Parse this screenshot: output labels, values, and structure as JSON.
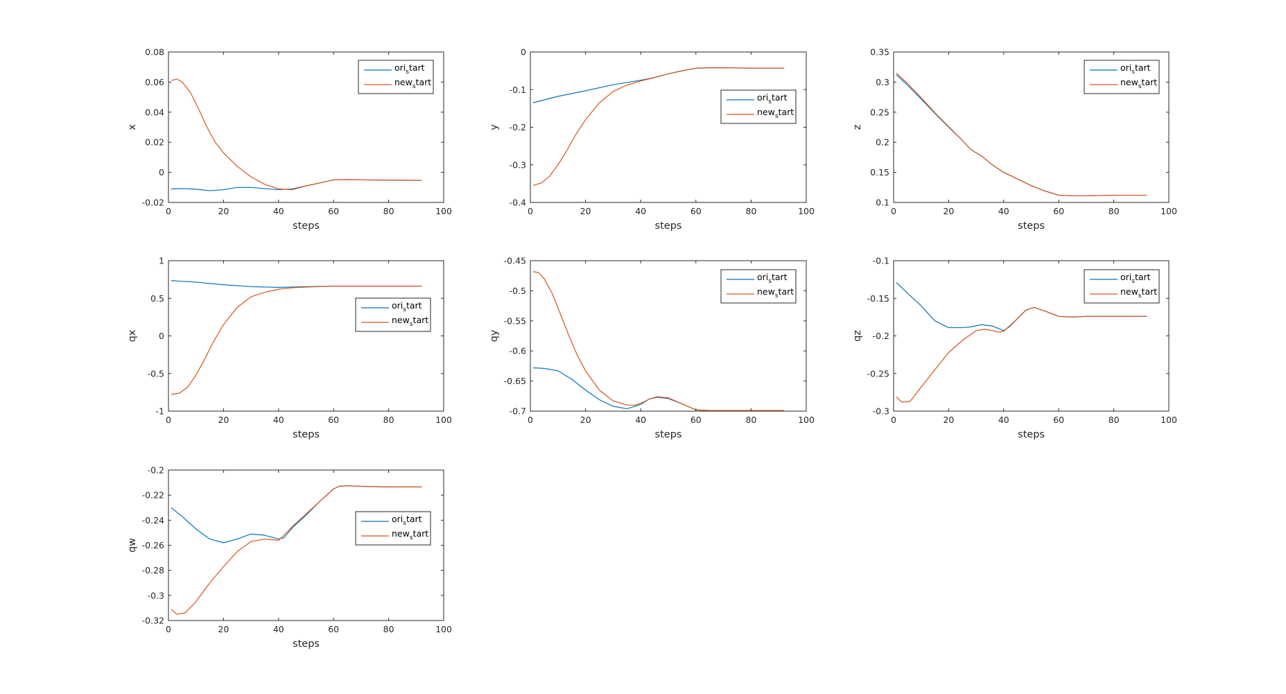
{
  "figure": {
    "background": "#ffffff"
  },
  "series_styles": {
    "ori_start": "#0072BD",
    "new_start": "#D95319"
  },
  "chart_data": [
    {
      "type": "line",
      "title": "",
      "xlabel": "steps",
      "ylabel": "x",
      "xlim": [
        0,
        100
      ],
      "ylim": [
        -0.02,
        0.08
      ],
      "xticks": [
        0,
        20,
        40,
        60,
        80,
        100
      ],
      "yticks": [
        -0.02,
        0,
        0.02,
        0.04,
        0.06,
        0.08
      ],
      "ytick_labels": [
        "-0.02",
        "0",
        "0.02",
        "0.04",
        "0.06",
        "0.08"
      ],
      "legend": "top-right",
      "grid": false,
      "series": [
        {
          "name": "ori_start",
          "color": "#0072BD",
          "x": [
            1,
            5,
            10,
            15,
            20,
            25,
            30,
            35,
            40,
            45,
            50,
            55,
            60,
            65,
            70,
            80,
            92
          ],
          "y": [
            -0.011,
            -0.0108,
            -0.0112,
            -0.0122,
            -0.0115,
            -0.01,
            -0.01,
            -0.0108,
            -0.0115,
            -0.011,
            -0.009,
            -0.007,
            -0.005,
            -0.0048,
            -0.005,
            -0.0052,
            -0.0053
          ]
        },
        {
          "name": "new_start",
          "color": "#D95319",
          "x": [
            1,
            3,
            5,
            8,
            11,
            14,
            17,
            20,
            25,
            30,
            35,
            40,
            45,
            50,
            55,
            60,
            65,
            70,
            80,
            92
          ],
          "y": [
            0.061,
            0.062,
            0.06,
            0.053,
            0.042,
            0.03,
            0.02,
            0.013,
            0.004,
            -0.003,
            -0.008,
            -0.011,
            -0.0115,
            -0.009,
            -0.007,
            -0.005,
            -0.0048,
            -0.005,
            -0.0052,
            -0.0053
          ]
        }
      ]
    },
    {
      "type": "line",
      "title": "",
      "xlabel": "steps",
      "ylabel": "y",
      "xlim": [
        0,
        100
      ],
      "ylim": [
        -0.4,
        0
      ],
      "xticks": [
        0,
        20,
        40,
        60,
        80,
        100
      ],
      "yticks": [
        -0.4,
        -0.3,
        -0.2,
        -0.1,
        0
      ],
      "ytick_labels": [
        "-0.4",
        "-0.3",
        "-0.2",
        "-0.1",
        "0"
      ],
      "legend": "top-right",
      "grid": false,
      "series": [
        {
          "name": "ori_start",
          "color": "#0072BD",
          "x": [
            1,
            10,
            20,
            30,
            40,
            45,
            50,
            55,
            60,
            65,
            70,
            80,
            92
          ],
          "y": [
            -0.135,
            -0.118,
            -0.103,
            -0.087,
            -0.075,
            -0.068,
            -0.058,
            -0.05,
            -0.043,
            -0.042,
            -0.042,
            -0.043,
            -0.043
          ]
        },
        {
          "name": "new_start",
          "color": "#D95319",
          "x": [
            1,
            4,
            7,
            10,
            13,
            16,
            20,
            25,
            30,
            35,
            40,
            45,
            50,
            55,
            60,
            65,
            70,
            80,
            92
          ],
          "y": [
            -0.355,
            -0.348,
            -0.33,
            -0.3,
            -0.265,
            -0.225,
            -0.18,
            -0.135,
            -0.105,
            -0.088,
            -0.077,
            -0.068,
            -0.058,
            -0.05,
            -0.043,
            -0.042,
            -0.042,
            -0.043,
            -0.043
          ]
        }
      ]
    },
    {
      "type": "line",
      "title": "",
      "xlabel": "steps",
      "ylabel": "z",
      "xlim": [
        0,
        100
      ],
      "ylim": [
        0.1,
        0.35
      ],
      "xticks": [
        0,
        20,
        40,
        60,
        80,
        100
      ],
      "yticks": [
        0.1,
        0.15,
        0.2,
        0.25,
        0.3,
        0.35
      ],
      "ytick_labels": [
        "0.1",
        "0.15",
        "0.2",
        "0.25",
        "0.3",
        "0.35"
      ],
      "legend": "top-right",
      "grid": false,
      "series": [
        {
          "name": "ori_start",
          "color": "#0072BD",
          "x": [
            1,
            5,
            10,
            15,
            20,
            25,
            28,
            32,
            36,
            40,
            45,
            50,
            55,
            60,
            65,
            70,
            80,
            92
          ],
          "y": [
            0.312,
            0.295,
            0.272,
            0.248,
            0.225,
            0.203,
            0.188,
            0.177,
            0.162,
            0.15,
            0.139,
            0.128,
            0.119,
            0.112,
            0.111,
            0.111,
            0.112,
            0.112
          ]
        },
        {
          "name": "new_start",
          "color": "#D95319",
          "x": [
            1,
            5,
            10,
            15,
            20,
            25,
            28,
            32,
            36,
            40,
            45,
            50,
            55,
            60,
            65,
            70,
            80,
            92
          ],
          "y": [
            0.315,
            0.298,
            0.274,
            0.249,
            0.226,
            0.203,
            0.188,
            0.177,
            0.162,
            0.15,
            0.139,
            0.128,
            0.119,
            0.112,
            0.111,
            0.111,
            0.112,
            0.112
          ]
        }
      ]
    },
    {
      "type": "line",
      "title": "",
      "xlabel": "steps",
      "ylabel": "qx",
      "xlim": [
        0,
        100
      ],
      "ylim": [
        -1,
        1
      ],
      "xticks": [
        0,
        20,
        40,
        60,
        80,
        100
      ],
      "yticks": [
        -1,
        -0.5,
        0,
        0.5,
        1
      ],
      "ytick_labels": [
        "-1",
        "-0.5",
        "0",
        "0.5",
        "1"
      ],
      "legend": "right",
      "grid": false,
      "series": [
        {
          "name": "ori_start",
          "color": "#0072BD",
          "x": [
            1,
            10,
            20,
            30,
            40,
            50,
            60,
            70,
            80,
            92
          ],
          "y": [
            0.735,
            0.715,
            0.68,
            0.655,
            0.645,
            0.655,
            0.66,
            0.66,
            0.66,
            0.66
          ]
        },
        {
          "name": "new_start",
          "color": "#D95319",
          "x": [
            1,
            4,
            7,
            10,
            13,
            16,
            20,
            25,
            30,
            35,
            40,
            45,
            50,
            55,
            60,
            70,
            80,
            92
          ],
          "y": [
            -0.78,
            -0.76,
            -0.68,
            -0.52,
            -0.32,
            -0.1,
            0.15,
            0.38,
            0.52,
            0.58,
            0.62,
            0.64,
            0.65,
            0.655,
            0.66,
            0.66,
            0.66,
            0.66
          ]
        }
      ]
    },
    {
      "type": "line",
      "title": "",
      "xlabel": "steps",
      "ylabel": "qy",
      "xlim": [
        0,
        100
      ],
      "ylim": [
        -0.7,
        -0.45
      ],
      "xticks": [
        0,
        20,
        40,
        60,
        80,
        100
      ],
      "yticks": [
        -0.7,
        -0.65,
        -0.6,
        -0.55,
        -0.5,
        -0.45
      ],
      "ytick_labels": [
        "-0.7",
        "-0.65",
        "-0.6",
        "-0.55",
        "-0.5",
        "-0.45"
      ],
      "legend": "top-right",
      "grid": false,
      "series": [
        {
          "name": "ori_start",
          "color": "#0072BD",
          "x": [
            1,
            5,
            10,
            15,
            20,
            25,
            30,
            35,
            40,
            43,
            46,
            50,
            55,
            60,
            65,
            70,
            80,
            92
          ],
          "y": [
            -0.628,
            -0.629,
            -0.633,
            -0.647,
            -0.665,
            -0.681,
            -0.692,
            -0.696,
            -0.689,
            -0.68,
            -0.677,
            -0.679,
            -0.688,
            -0.698,
            -0.699,
            -0.699,
            -0.699,
            -0.699
          ]
        },
        {
          "name": "new_start",
          "color": "#D95319",
          "x": [
            1,
            3,
            5,
            8,
            11,
            14,
            17,
            20,
            25,
            30,
            35,
            38,
            41,
            43,
            46,
            50,
            55,
            60,
            65,
            70,
            80,
            92
          ],
          "y": [
            -0.468,
            -0.47,
            -0.48,
            -0.505,
            -0.54,
            -0.575,
            -0.607,
            -0.633,
            -0.665,
            -0.683,
            -0.69,
            -0.69,
            -0.685,
            -0.68,
            -0.676,
            -0.678,
            -0.688,
            -0.698,
            -0.699,
            -0.699,
            -0.699,
            -0.699
          ]
        }
      ]
    },
    {
      "type": "line",
      "title": "",
      "xlabel": "steps",
      "ylabel": "qz",
      "xlim": [
        0,
        100
      ],
      "ylim": [
        -0.3,
        -0.1
      ],
      "xticks": [
        0,
        20,
        40,
        60,
        80,
        100
      ],
      "yticks": [
        -0.3,
        -0.25,
        -0.2,
        -0.15,
        -0.1
      ],
      "ytick_labels": [
        "-0.3",
        "-0.25",
        "-0.2",
        "-0.15",
        "-0.1"
      ],
      "legend": "top-right",
      "grid": false,
      "series": [
        {
          "name": "ori_start",
          "color": "#0072BD",
          "x": [
            1,
            5,
            10,
            15,
            20,
            25,
            28,
            32,
            36,
            38,
            40,
            42,
            45,
            48,
            51,
            55,
            60,
            65,
            70,
            80,
            92
          ],
          "y": [
            -0.129,
            -0.143,
            -0.16,
            -0.18,
            -0.189,
            -0.189,
            -0.188,
            -0.185,
            -0.187,
            -0.19,
            -0.193,
            -0.188,
            -0.177,
            -0.166,
            -0.162,
            -0.167,
            -0.174,
            -0.175,
            -0.174,
            -0.174,
            -0.174
          ]
        },
        {
          "name": "new_start",
          "color": "#D95319",
          "x": [
            1,
            3,
            6,
            10,
            15,
            20,
            25,
            30,
            33,
            36,
            38,
            40,
            42,
            45,
            48,
            51,
            55,
            60,
            65,
            70,
            80,
            92
          ],
          "y": [
            -0.281,
            -0.288,
            -0.287,
            -0.268,
            -0.245,
            -0.222,
            -0.206,
            -0.193,
            -0.191,
            -0.193,
            -0.195,
            -0.194,
            -0.187,
            -0.177,
            -0.166,
            -0.162,
            -0.167,
            -0.174,
            -0.175,
            -0.174,
            -0.174,
            -0.174
          ]
        }
      ]
    },
    {
      "type": "line",
      "title": "",
      "xlabel": "steps",
      "ylabel": "qw",
      "xlim": [
        0,
        100
      ],
      "ylim": [
        -0.32,
        -0.2
      ],
      "xticks": [
        0,
        20,
        40,
        60,
        80,
        100
      ],
      "yticks": [
        -0.32,
        -0.3,
        -0.28,
        -0.26,
        -0.24,
        -0.22,
        -0.2
      ],
      "ytick_labels": [
        "-0.32",
        "-0.3",
        "-0.28",
        "-0.26",
        "-0.24",
        "-0.22",
        "-0.2"
      ],
      "legend": "right",
      "grid": false,
      "series": [
        {
          "name": "ori_start",
          "color": "#0072BD",
          "x": [
            1,
            5,
            10,
            15,
            20,
            25,
            30,
            35,
            40,
            42,
            45,
            50,
            55,
            60,
            62,
            65,
            70,
            80,
            92
          ],
          "y": [
            -0.23,
            -0.237,
            -0.247,
            -0.255,
            -0.258,
            -0.255,
            -0.251,
            -0.252,
            -0.255,
            -0.254,
            -0.246,
            -0.236,
            -0.225,
            -0.215,
            -0.213,
            -0.2125,
            -0.213,
            -0.2135,
            -0.2135
          ]
        },
        {
          "name": "new_start",
          "color": "#D95319",
          "x": [
            1,
            3,
            6,
            10,
            15,
            20,
            25,
            30,
            35,
            40,
            42,
            45,
            50,
            55,
            60,
            62,
            65,
            70,
            80,
            92
          ],
          "y": [
            -0.311,
            -0.315,
            -0.314,
            -0.305,
            -0.29,
            -0.277,
            -0.265,
            -0.257,
            -0.255,
            -0.256,
            -0.252,
            -0.245,
            -0.235,
            -0.225,
            -0.215,
            -0.213,
            -0.2125,
            -0.213,
            -0.2135,
            -0.2135
          ]
        }
      ]
    }
  ]
}
